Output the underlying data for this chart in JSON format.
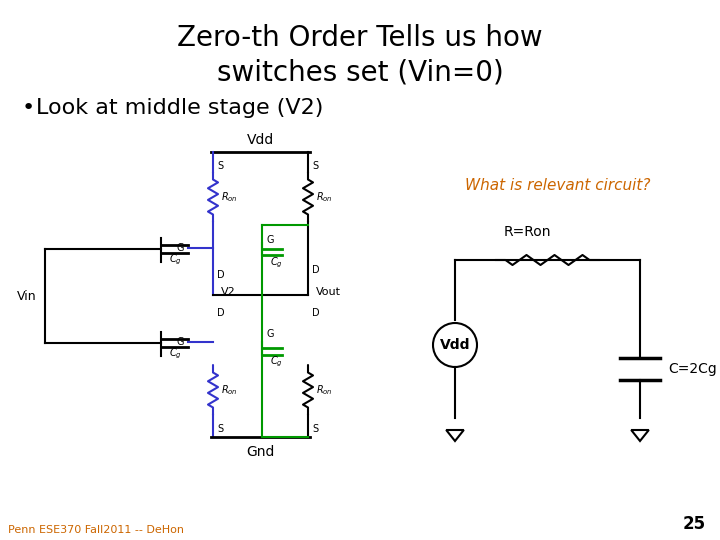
{
  "title_line1": "Zero-th Order Tells us how",
  "title_line2": "switches set (Vin=0)",
  "bullet": "Look at middle stage (V2)",
  "label_vdd_left": "Vdd",
  "label_gnd": "Gnd",
  "label_vin": "Vin",
  "label_vout": "Vout",
  "label_v2": "V2",
  "label_what": "What is relevant circuit?",
  "label_ron": "R=Ron",
  "label_c": "C=2Cg",
  "label_vdd_circle": "Vdd",
  "label_page": "25",
  "label_footer": "Penn ESE370 Fall2011 -- DeHon",
  "bg_color": "#ffffff",
  "title_color": "#000000",
  "what_color": "#cc6600",
  "footer_color": "#cc6600",
  "blue_color": "#3333cc",
  "green_color": "#009900",
  "black_color": "#000000"
}
